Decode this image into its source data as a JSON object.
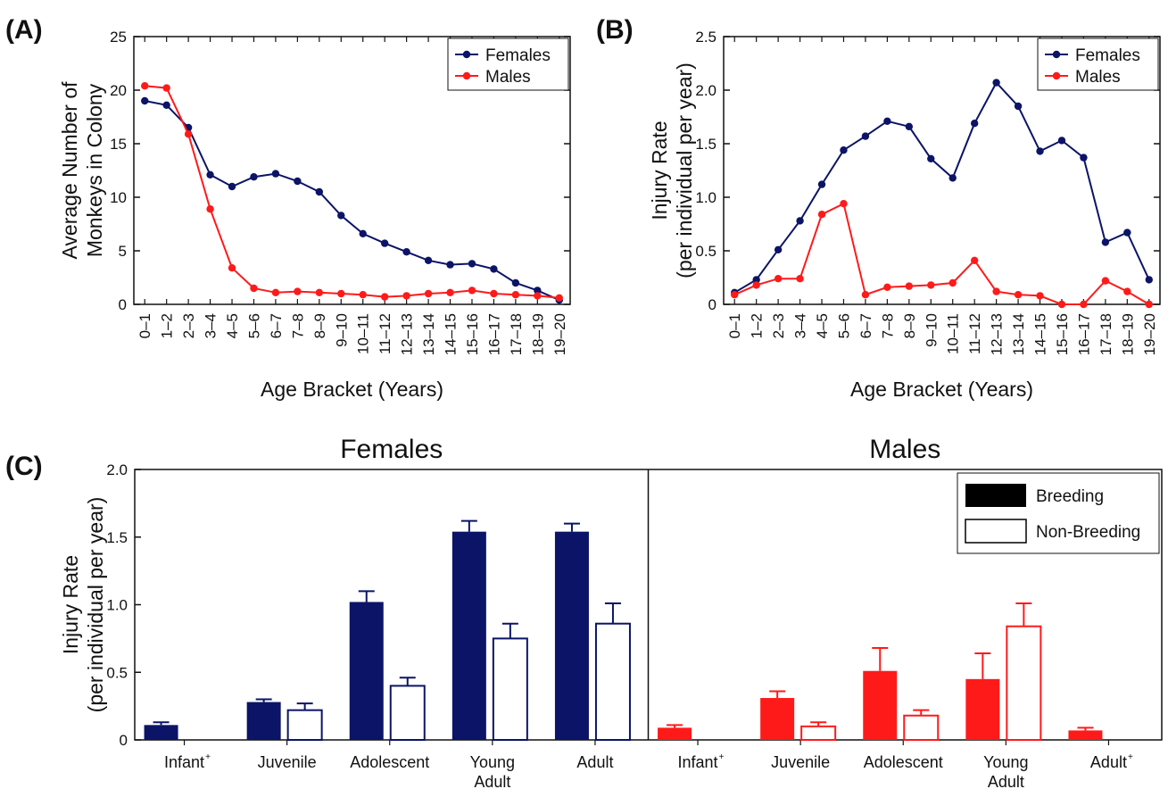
{
  "colors": {
    "females": "#0b1466",
    "males": "#ff1a1a",
    "axis": "#111111"
  },
  "chart_data": [
    {
      "panel": "(A)",
      "type": "line",
      "categories": [
        "0–1",
        "1–2",
        "2–3",
        "3–4",
        "4–5",
        "5–6",
        "6–7",
        "7–8",
        "8–9",
        "9–10",
        "10–11",
        "11–12",
        "12–13",
        "13–14",
        "14–15",
        "15–16",
        "16–17",
        "17–18",
        "18–19",
        "19–20"
      ],
      "series": [
        {
          "name": "Females",
          "color": "#0b1466",
          "values": [
            19.0,
            18.6,
            16.5,
            12.1,
            11.0,
            11.9,
            12.2,
            11.5,
            10.5,
            8.3,
            6.6,
            5.7,
            4.9,
            4.1,
            3.7,
            3.8,
            3.3,
            2.0,
            1.3,
            0.4
          ]
        },
        {
          "name": "Males",
          "color": "#ff1a1a",
          "values": [
            20.4,
            20.2,
            15.9,
            8.9,
            3.4,
            1.5,
            1.1,
            1.2,
            1.1,
            1.0,
            0.9,
            0.7,
            0.8,
            1.0,
            1.1,
            1.3,
            1.0,
            0.9,
            0.8,
            0.6
          ]
        }
      ],
      "xlabel": "Age Bracket (Years)",
      "ylabel": [
        "Average Number of",
        "Monkeys in Colony"
      ],
      "ylim": [
        0,
        25
      ],
      "yticks": [
        "0",
        "5",
        "10",
        "15",
        "20",
        "25"
      ],
      "legend": "top-right"
    },
    {
      "panel": "(B)",
      "type": "line",
      "categories": [
        "0–1",
        "1–2",
        "2–3",
        "3–4",
        "4–5",
        "5–6",
        "6–7",
        "7–8",
        "8–9",
        "9–10",
        "10–11",
        "11–12",
        "12–13",
        "13–14",
        "14–15",
        "15–16",
        "16–17",
        "17–18",
        "18–19",
        "19–20"
      ],
      "series": [
        {
          "name": "Females",
          "color": "#0b1466",
          "values": [
            0.11,
            0.23,
            0.51,
            0.78,
            1.12,
            1.44,
            1.57,
            1.71,
            1.66,
            1.36,
            1.18,
            1.69,
            2.07,
            1.85,
            1.43,
            1.53,
            1.37,
            0.58,
            0.67,
            0.23
          ]
        },
        {
          "name": "Males",
          "color": "#ff1a1a",
          "values": [
            0.09,
            0.18,
            0.24,
            0.24,
            0.84,
            0.94,
            0.09,
            0.16,
            0.17,
            0.18,
            0.2,
            0.41,
            0.12,
            0.09,
            0.08,
            0.0,
            0.0,
            0.22,
            0.12,
            0.0
          ]
        }
      ],
      "xlabel": "Age Bracket (Years)",
      "ylabel": [
        "Injury Rate",
        "(per individual per year)"
      ],
      "ylim": [
        0,
        2.5
      ],
      "yticks": [
        "0",
        "0.5",
        "1.0",
        "1.5",
        "2.0",
        "2.5"
      ],
      "legend": "top-right"
    },
    {
      "panel": "(C)",
      "type": "bar",
      "ylabel": [
        "Injury Rate",
        "(per individual per year)"
      ],
      "ylim": [
        0,
        2.0
      ],
      "yticks": [
        "0",
        "0.5",
        "1.0",
        "1.5",
        "2.0"
      ],
      "legend": {
        "placement": "top-right",
        "breeding": "Breeding",
        "nonbreeding": "Non-Breeding"
      },
      "groups": [
        {
          "title": "Females",
          "color": "#0b1466",
          "categories": [
            {
              "label": [
                "Infant"
              ],
              "dagger": "+",
              "breeding": 0.11,
              "breeding_err": 0.02,
              "nonbreeding": null,
              "nonbreeding_err": null
            },
            {
              "label": [
                "Juvenile"
              ],
              "dagger": "",
              "breeding": 0.28,
              "breeding_err": 0.02,
              "nonbreeding": 0.22,
              "nonbreeding_err": 0.05
            },
            {
              "label": [
                "Adolescent"
              ],
              "dagger": "",
              "breeding": 1.02,
              "breeding_err": 0.08,
              "nonbreeding": 0.4,
              "nonbreeding_err": 0.06
            },
            {
              "label": [
                "Young",
                "Adult"
              ],
              "dagger": "",
              "breeding": 1.54,
              "breeding_err": 0.08,
              "nonbreeding": 0.75,
              "nonbreeding_err": 0.11
            },
            {
              "label": [
                "Adult"
              ],
              "dagger": "",
              "breeding": 1.54,
              "breeding_err": 0.06,
              "nonbreeding": 0.86,
              "nonbreeding_err": 0.15
            }
          ]
        },
        {
          "title": "Males",
          "color": "#ff1a1a",
          "categories": [
            {
              "label": [
                "Infant"
              ],
              "dagger": "+",
              "breeding": 0.09,
              "breeding_err": 0.02,
              "nonbreeding": null,
              "nonbreeding_err": null
            },
            {
              "label": [
                "Juvenile"
              ],
              "dagger": "",
              "breeding": 0.31,
              "breeding_err": 0.05,
              "nonbreeding": 0.1,
              "nonbreeding_err": 0.03
            },
            {
              "label": [
                "Adolescent"
              ],
              "dagger": "",
              "breeding": 0.51,
              "breeding_err": 0.17,
              "nonbreeding": 0.18,
              "nonbreeding_err": 0.04
            },
            {
              "label": [
                "Young",
                "Adult"
              ],
              "dagger": "",
              "breeding": 0.45,
              "breeding_err": 0.19,
              "nonbreeding": 0.84,
              "nonbreeding_err": 0.17
            },
            {
              "label": [
                "Adult"
              ],
              "dagger": "+",
              "breeding": 0.07,
              "breeding_err": 0.02,
              "nonbreeding": null,
              "nonbreeding_err": null
            }
          ]
        }
      ]
    }
  ]
}
